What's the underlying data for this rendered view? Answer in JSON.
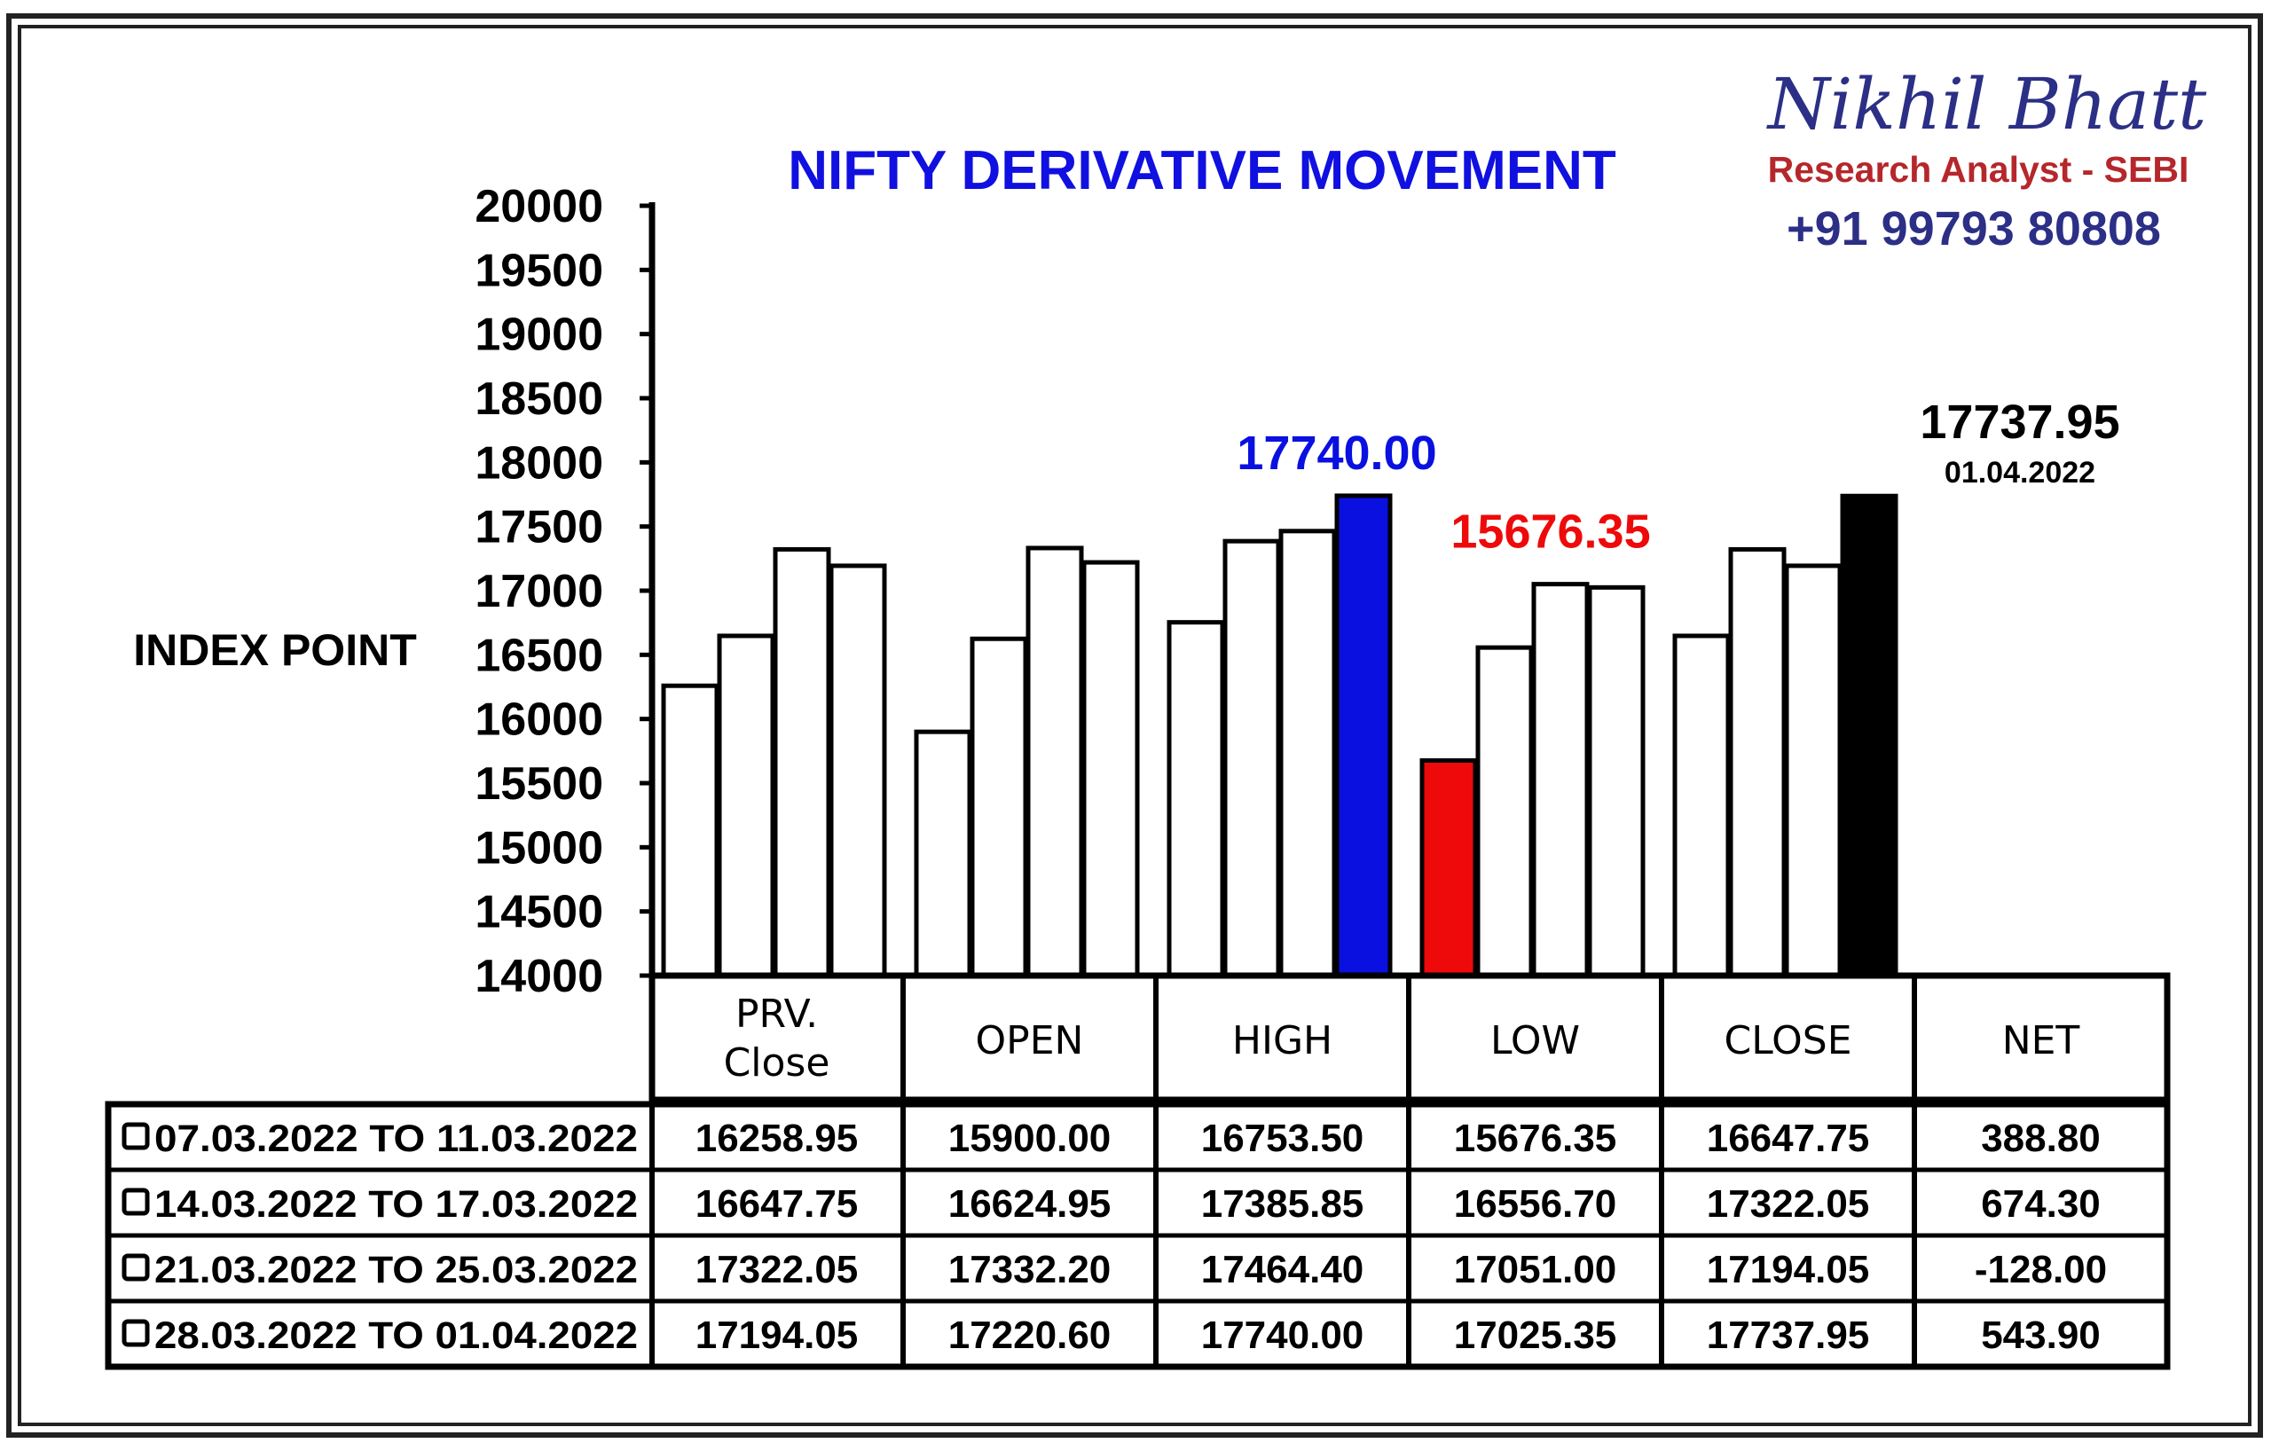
{
  "colors": {
    "title": "#1010e0",
    "brand_name": "#2b2f86",
    "brand_sub": "#b5272b",
    "brand_phone": "#2b2f86",
    "high_highlight": "#0a10e0",
    "low_highlight": "#ee0a0a",
    "close_highlight": "#000000",
    "bar_default": "#ffffff",
    "border": "#000000"
  },
  "branding": {
    "name": "Nikhil Bhatt",
    "subtitle": "Research Analyst - SEBI",
    "phone": "+91 99793 80808"
  },
  "chart_data": {
    "type": "bar",
    "title": "NIFTY DERIVATIVE MOVEMENT",
    "ylabel": "INDEX POINT",
    "xlabel": "",
    "ylim": [
      14000,
      20000
    ],
    "yticks": [
      "20000",
      "19500",
      "19000",
      "18500",
      "18000",
      "17500",
      "17000",
      "16500",
      "16000",
      "15500",
      "15000",
      "14500",
      "14000"
    ],
    "categories": [
      "PRV.\nClose",
      "OPEN",
      "HIGH",
      "LOW",
      "CLOSE"
    ],
    "category_lines": [
      [
        "PRV.",
        "Close"
      ],
      [
        "OPEN"
      ],
      [
        "HIGH"
      ],
      [
        "LOW"
      ],
      [
        "CLOSE"
      ]
    ],
    "series": [
      {
        "name": "07.03.2022 TO 11.03.2022",
        "values": [
          16258.95,
          15900.0,
          16753.5,
          15676.35,
          16647.75
        ]
      },
      {
        "name": "14.03.2022 TO 17.03.2022",
        "values": [
          16647.75,
          16624.95,
          17385.85,
          16556.7,
          17322.05
        ]
      },
      {
        "name": "21.03.2022 TO 25.03.2022",
        "values": [
          17322.05,
          17332.2,
          17464.4,
          17051.0,
          17194.05
        ]
      },
      {
        "name": "28.03.2022 TO 01.04.2022",
        "values": [
          17194.05,
          17220.6,
          17740.0,
          17025.35,
          17737.95
        ]
      }
    ],
    "highlights": [
      {
        "category": 2,
        "series": 3,
        "color": "#0a10e0"
      },
      {
        "category": 3,
        "series": 0,
        "color": "#ee0a0a"
      },
      {
        "category": 4,
        "series": 3,
        "color": "#000000"
      }
    ],
    "annotations": {
      "high": "17740.00",
      "low": "15676.35",
      "close": "17737.95",
      "close_date": "01.04.2022"
    },
    "grid": false,
    "legend": "table-bottom"
  },
  "table": {
    "headers": [
      [
        "PRV.",
        "Close"
      ],
      [
        "OPEN"
      ],
      [
        "HIGH"
      ],
      [
        "LOW"
      ],
      [
        "CLOSE"
      ],
      [
        "NET"
      ]
    ],
    "rows": [
      {
        "label": "07.03.2022 TO 11.03.2022",
        "cells": [
          "16258.95",
          "15900.00",
          "16753.50",
          "15676.35",
          "16647.75",
          "388.80"
        ]
      },
      {
        "label": "14.03.2022 TO 17.03.2022",
        "cells": [
          "16647.75",
          "16624.95",
          "17385.85",
          "16556.70",
          "17322.05",
          "674.30"
        ]
      },
      {
        "label": "21.03.2022 TO 25.03.2022",
        "cells": [
          "17322.05",
          "17332.20",
          "17464.40",
          "17051.00",
          "17194.05",
          "-128.00"
        ]
      },
      {
        "label": "28.03.2022 TO 01.04.2022",
        "cells": [
          "17194.05",
          "17220.60",
          "17740.00",
          "17025.35",
          "17737.95",
          "543.90"
        ]
      }
    ]
  }
}
